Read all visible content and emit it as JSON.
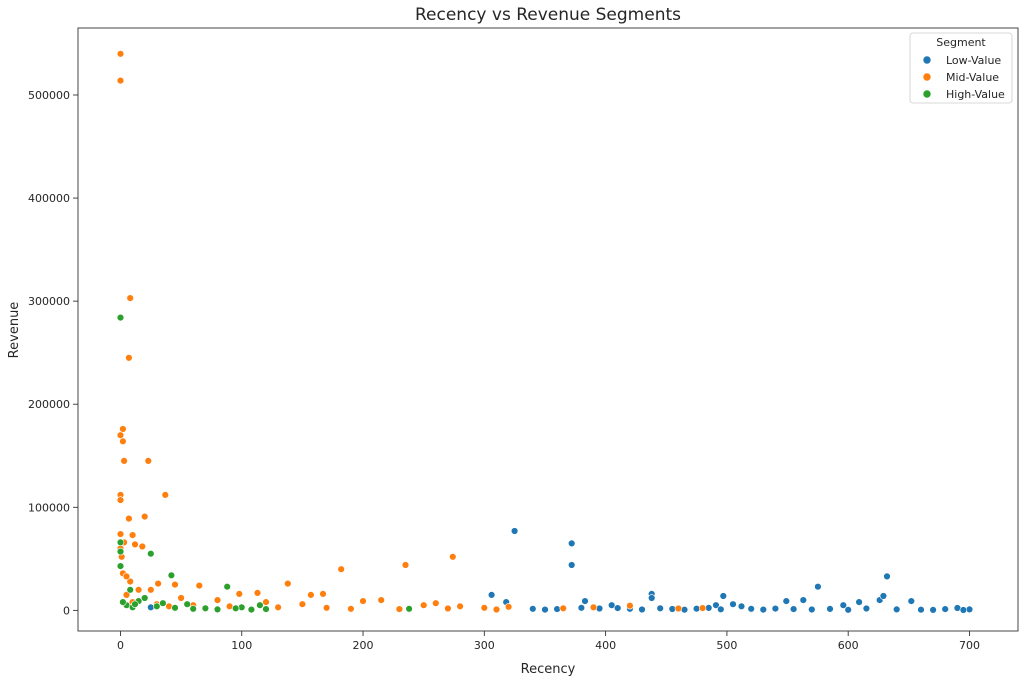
{
  "chart_data": {
    "type": "scatter",
    "title": "Recency vs Revenue Segments",
    "xlabel": "Recency",
    "ylabel": "Revenue",
    "xlim": [
      -35,
      740
    ],
    "ylim": [
      -20000,
      565000
    ],
    "xticks": [
      0,
      100,
      200,
      300,
      400,
      500,
      600,
      700
    ],
    "yticks": [
      0,
      100000,
      200000,
      300000,
      400000,
      500000
    ],
    "grid": false,
    "legend": {
      "title": "Segment",
      "placement": "top-right"
    },
    "series": [
      {
        "name": "Low-Value",
        "color": "#1f77b4",
        "points": [
          [
            325,
            77000
          ],
          [
            372,
            65000
          ],
          [
            372,
            44000
          ],
          [
            306,
            15000
          ],
          [
            318,
            8000
          ],
          [
            383,
            9000
          ],
          [
            405,
            5000
          ],
          [
            438,
            16000
          ],
          [
            438,
            12000
          ],
          [
            497,
            14000
          ],
          [
            491,
            5000
          ],
          [
            505,
            6000
          ],
          [
            512,
            4000
          ],
          [
            549,
            9000
          ],
          [
            563,
            10000
          ],
          [
            575,
            23000
          ],
          [
            596,
            5000
          ],
          [
            609,
            8000
          ],
          [
            626,
            10000
          ],
          [
            629,
            14000
          ],
          [
            632,
            33000
          ],
          [
            652,
            9000
          ],
          [
            700,
            1000
          ],
          [
            25,
            3000
          ],
          [
            340,
            1500
          ],
          [
            350,
            800
          ],
          [
            360,
            1200
          ],
          [
            380,
            2500
          ],
          [
            395,
            1800
          ],
          [
            410,
            2200
          ],
          [
            420,
            1500
          ],
          [
            430,
            900
          ],
          [
            445,
            2000
          ],
          [
            455,
            1300
          ],
          [
            465,
            700
          ],
          [
            475,
            1600
          ],
          [
            485,
            2400
          ],
          [
            495,
            1100
          ],
          [
            520,
            1500
          ],
          [
            530,
            800
          ],
          [
            540,
            1700
          ],
          [
            555,
            1200
          ],
          [
            570,
            900
          ],
          [
            585,
            1400
          ],
          [
            600,
            600
          ],
          [
            615,
            1800
          ],
          [
            640,
            1000
          ],
          [
            660,
            700
          ],
          [
            670,
            500
          ],
          [
            680,
            1200
          ],
          [
            690,
            2300
          ],
          [
            695,
            400
          ]
        ]
      },
      {
        "name": "Mid-Value",
        "color": "#ff7f0e",
        "points": [
          [
            0,
            540000
          ],
          [
            0,
            514000
          ],
          [
            8,
            303000
          ],
          [
            7,
            245000
          ],
          [
            2,
            176000
          ],
          [
            0,
            170000
          ],
          [
            2,
            164000
          ],
          [
            3,
            145000
          ],
          [
            23,
            145000
          ],
          [
            37,
            112000
          ],
          [
            0,
            112000
          ],
          [
            0,
            107000
          ],
          [
            7,
            89000
          ],
          [
            20,
            91000
          ],
          [
            0,
            74000
          ],
          [
            10,
            73000
          ],
          [
            3,
            66000
          ],
          [
            12,
            64000
          ],
          [
            18,
            62000
          ],
          [
            0,
            60000
          ],
          [
            1,
            52000
          ],
          [
            274,
            52000
          ],
          [
            182,
            40000
          ],
          [
            235,
            44000
          ],
          [
            138,
            26000
          ],
          [
            167,
            16000
          ],
          [
            157,
            15000
          ],
          [
            98,
            16000
          ],
          [
            113,
            17000
          ],
          [
            45,
            25000
          ],
          [
            65,
            24000
          ],
          [
            31,
            26000
          ],
          [
            25,
            20000
          ],
          [
            8,
            28000
          ],
          [
            2,
            36000
          ],
          [
            5,
            33000
          ],
          [
            15,
            20000
          ],
          [
            50,
            12000
          ],
          [
            80,
            10000
          ],
          [
            120,
            8000
          ],
          [
            150,
            6000
          ],
          [
            200,
            9000
          ],
          [
            215,
            10000
          ],
          [
            250,
            5000
          ],
          [
            260,
            7000
          ],
          [
            280,
            4000
          ],
          [
            300,
            2500
          ],
          [
            320,
            3500
          ],
          [
            365,
            2000
          ],
          [
            390,
            3000
          ],
          [
            420,
            4500
          ],
          [
            460,
            1800
          ],
          [
            480,
            2200
          ],
          [
            60,
            5000
          ],
          [
            90,
            4000
          ],
          [
            130,
            3000
          ],
          [
            170,
            2500
          ],
          [
            190,
            1500
          ],
          [
            230,
            1200
          ],
          [
            270,
            1800
          ],
          [
            310,
            900
          ],
          [
            5,
            15000
          ],
          [
            10,
            8000
          ],
          [
            30,
            6000
          ],
          [
            40,
            4000
          ],
          [
            70,
            2000
          ]
        ]
      },
      {
        "name": "High-Value",
        "color": "#2ca02c",
        "points": [
          [
            0,
            284000
          ],
          [
            0,
            66000
          ],
          [
            0,
            57000
          ],
          [
            25,
            55000
          ],
          [
            0,
            43000
          ],
          [
            42,
            34000
          ],
          [
            88,
            23000
          ],
          [
            15,
            9000
          ],
          [
            5,
            5000
          ],
          [
            10,
            3000
          ],
          [
            30,
            4000
          ],
          [
            45,
            2500
          ],
          [
            55,
            6000
          ],
          [
            70,
            2000
          ],
          [
            100,
            3000
          ],
          [
            115,
            5000
          ],
          [
            238,
            1500
          ],
          [
            2,
            8000
          ],
          [
            20,
            12000
          ],
          [
            35,
            7000
          ],
          [
            60,
            1500
          ],
          [
            80,
            1000
          ],
          [
            95,
            2000
          ],
          [
            108,
            800
          ],
          [
            120,
            1200
          ],
          [
            8,
            20000
          ],
          [
            12,
            6000
          ]
        ]
      }
    ]
  }
}
